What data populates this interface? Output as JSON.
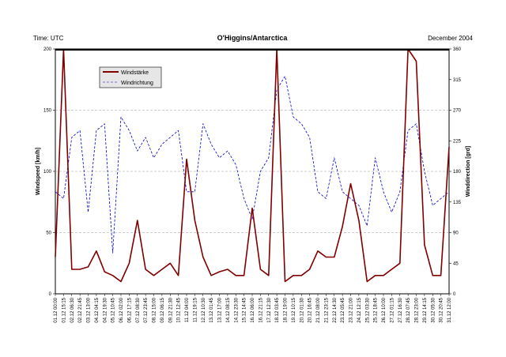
{
  "header": {
    "left": "Time: UTC",
    "title": "O'Higgins/Antarctica",
    "right": "December 2004"
  },
  "chart_data": {
    "type": "line",
    "title": "O'Higgins/Antarctica",
    "ylabel_left": "Windspeed [km/h]",
    "ylabel_right": "Winddirection [grd]",
    "ylim_left": [
      0,
      200
    ],
    "ylim_right": [
      0,
      360
    ],
    "yticks_left": [
      0,
      50,
      100,
      150,
      200
    ],
    "yticks_right": [
      0,
      45,
      90,
      135,
      180,
      225,
      270,
      315,
      360
    ],
    "grid": true,
    "legend_position": "top-left",
    "x_tick_labels": [
      "01.12 00:00",
      "01.12 15:15",
      "02.12 06:30",
      "02.12 21:45",
      "03.12 13:00",
      "04.12 04:15",
      "04.12 19:30",
      "05.12 10:45",
      "06.12 02:00",
      "06.12 17:15",
      "07.12 08:30",
      "07.12 23:45",
      "08.12 15:00",
      "09.12 06:15",
      "09.12 21:30",
      "10.12 12:45",
      "11.12 04:00",
      "11.12 19:15",
      "12.12 10:30",
      "13.12 01:45",
      "13.12 17:00",
      "14.12 08:15",
      "14.12 23:30",
      "15.12 14:45",
      "16.12 06:00",
      "16.12 21:15",
      "17.12 12:30",
      "18.12 03:45",
      "18.12 19:00",
      "19.12 10:15",
      "20.12 01:30",
      "20.12 16:45",
      "21.12 08:00",
      "21.12 23:15",
      "22.12 14:30",
      "23.12 05:45",
      "23.12 21:00",
      "24.12 12:15",
      "25.12 03:30",
      "25.12 18:45",
      "26.12 10:00",
      "27.12 01:15",
      "27.12 16:30",
      "28.12 07:45",
      "28.12 23:00",
      "29.12 14:15",
      "30.12 05:30",
      "30.12 20:45",
      "31.12 12:00"
    ],
    "series": [
      {
        "name": "Windstärke",
        "axis": "left",
        "color": "#800000",
        "style": "solid",
        "x": [
          0,
          1,
          2,
          3,
          4,
          5,
          6,
          7,
          8,
          9,
          10,
          11,
          12,
          13,
          14,
          15,
          16,
          17,
          18,
          19,
          20,
          21,
          22,
          23,
          24,
          25,
          26,
          27,
          28,
          29,
          30,
          31,
          32,
          33,
          34,
          35,
          36,
          37,
          38,
          39,
          40,
          41,
          42,
          43,
          44,
          45,
          46,
          47,
          48
        ],
        "values": [
          30,
          200,
          20,
          20,
          22,
          35,
          18,
          15,
          10,
          25,
          60,
          20,
          15,
          20,
          25,
          15,
          110,
          60,
          30,
          15,
          18,
          20,
          15,
          15,
          70,
          20,
          15,
          200,
          10,
          15,
          15,
          20,
          35,
          30,
          30,
          55,
          90,
          60,
          10,
          15,
          15,
          20,
          25,
          200,
          190,
          40,
          15,
          15,
          120
        ]
      },
      {
        "name": "Windrichtung",
        "axis": "right",
        "color": "#0000cc",
        "style": "dashed",
        "x": [
          0,
          1,
          2,
          3,
          4,
          5,
          6,
          7,
          8,
          9,
          10,
          11,
          12,
          13,
          14,
          15,
          16,
          17,
          18,
          19,
          20,
          21,
          22,
          23,
          24,
          25,
          26,
          27,
          28,
          29,
          30,
          31,
          32,
          33,
          34,
          35,
          36,
          37,
          38,
          39,
          40,
          41,
          42,
          43,
          44,
          45,
          46,
          47,
          48
        ],
        "values": [
          150,
          140,
          230,
          240,
          120,
          240,
          250,
          60,
          260,
          240,
          210,
          230,
          200,
          220,
          230,
          240,
          150,
          150,
          250,
          220,
          200,
          210,
          190,
          140,
          110,
          180,
          200,
          300,
          320,
          260,
          250,
          230,
          150,
          140,
          200,
          150,
          140,
          130,
          100,
          200,
          150,
          120,
          150,
          240,
          250,
          180,
          130,
          140,
          150
        ]
      }
    ]
  }
}
